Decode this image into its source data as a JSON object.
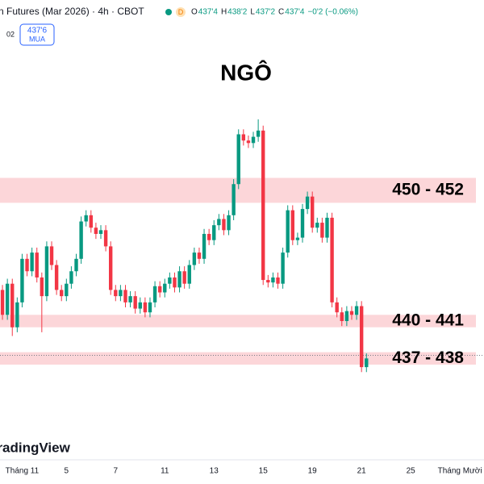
{
  "header": {
    "symbol": "n Futures (Mar 2026) · 4h · CBOT",
    "badge": "D",
    "ohlc": [
      {
        "label": "O",
        "value": "437'4"
      },
      {
        "label": "H",
        "value": "438'2"
      },
      {
        "label": "L",
        "value": "437'2"
      },
      {
        "label": "C",
        "value": "437'4"
      }
    ],
    "change": "−0'2 (−0.06%)",
    "row2": "02",
    "buy": {
      "price": "437'6",
      "label": "MUA"
    },
    "watermark": "TradingView"
  },
  "chart_data": {
    "type": "candlestick",
    "title": "NGÔ",
    "up_color": "#089981",
    "down_color": "#f23645",
    "open": [
      443,
      441,
      443.5,
      440,
      442,
      445.5,
      444.5,
      446,
      444,
      442.5,
      446.5,
      445,
      443,
      442.5,
      443.5,
      444.5,
      445.5,
      448.5,
      449,
      448,
      447.5,
      447.8,
      446.5,
      443,
      442.5,
      443,
      442,
      442.5,
      441.5,
      442,
      441.2,
      442,
      443.3,
      442.8,
      443.5,
      444,
      443.2,
      444.5,
      443.5,
      445,
      446,
      445.5,
      447.5,
      447,
      448.2,
      448.7,
      447.8,
      449,
      451.5,
      455.5,
      455,
      454.8,
      455.3,
      455.8,
      443.8,
      443.6,
      444,
      443.5,
      446,
      449.4,
      447,
      447.2,
      449.5,
      450.5,
      448,
      448.4,
      447.2,
      448.8,
      442,
      441.2,
      440.5,
      441.3,
      441,
      441.7,
      436.8
    ],
    "high": [
      443.4,
      443.9,
      443.9,
      442.4,
      445.9,
      445.9,
      446.4,
      446.4,
      444.4,
      446.9,
      446.9,
      445.4,
      443.4,
      443.9,
      444.9,
      445.9,
      448.9,
      449.4,
      449.4,
      448.4,
      448.2,
      448.2,
      446.9,
      443.4,
      443.4,
      443.4,
      442.9,
      442.9,
      442.4,
      442.4,
      442.4,
      443.7,
      443.7,
      443.9,
      444.4,
      444.4,
      444.9,
      444.9,
      445.4,
      446.4,
      446.4,
      447.9,
      447.9,
      448.6,
      449.1,
      449.1,
      449.4,
      451.9,
      455.9,
      455.9,
      455.4,
      455.7,
      456.7,
      456.2,
      444.2,
      444.4,
      444.4,
      446.4,
      449.8,
      449.8,
      447.6,
      449.9,
      450.9,
      450.9,
      448.8,
      448.8,
      449.2,
      449.2,
      442.4,
      441.6,
      441.7,
      441.7,
      442.1,
      442.1,
      437.9
    ],
    "low": [
      440.6,
      440.6,
      439.3,
      439.6,
      441.6,
      444.1,
      444.1,
      443.6,
      439.6,
      442.1,
      444.6,
      442.6,
      442.1,
      442.1,
      443.1,
      444.1,
      445.1,
      448.1,
      447.6,
      447.1,
      447.1,
      446.1,
      442.6,
      442.1,
      442.1,
      441.6,
      441.6,
      441.1,
      441.1,
      440.8,
      440.8,
      441.6,
      442.4,
      442.4,
      443.1,
      442.8,
      442.8,
      443.1,
      443.1,
      444.6,
      445.1,
      445.1,
      446.6,
      446.6,
      447.8,
      447.4,
      447.4,
      448.6,
      451.1,
      454.6,
      454.4,
      454.4,
      454.9,
      443.4,
      443.2,
      443.2,
      443.1,
      443.1,
      445.6,
      446.6,
      446.6,
      446.8,
      449.1,
      447.6,
      447.6,
      446.8,
      446.8,
      441.6,
      440.8,
      440.1,
      440.1,
      440.6,
      440.6,
      436.4,
      436.4
    ],
    "close": [
      441,
      443.5,
      440,
      442,
      445.5,
      444.5,
      446,
      444,
      442.5,
      446.5,
      445,
      443,
      442.5,
      443.5,
      444.5,
      445.5,
      448.5,
      449,
      448,
      447.5,
      447.8,
      446.5,
      443,
      442.5,
      443,
      442,
      442.5,
      441.5,
      442,
      441.2,
      442,
      443.3,
      442.8,
      443.5,
      444,
      443.2,
      444.5,
      443.5,
      445,
      446,
      445.5,
      447.5,
      447,
      448.2,
      448.7,
      447.8,
      449,
      451.5,
      455.5,
      455,
      454.8,
      455.3,
      455.8,
      443.8,
      443.6,
      444,
      443.5,
      446,
      449.4,
      447,
      447.2,
      449.5,
      450.5,
      448,
      448.4,
      447.2,
      448.8,
      442,
      441.2,
      440.5,
      441.3,
      441,
      441.7,
      436.8,
      437.5
    ],
    "xlim": [
      -0.5,
      97.9
    ],
    "ylim": [
      431.3,
      462.4
    ],
    "xticks": [
      {
        "value": 4,
        "label": "Tháng 11"
      },
      {
        "value": 13,
        "label": "5"
      },
      {
        "value": 23,
        "label": "7"
      },
      {
        "value": 33,
        "label": "11"
      },
      {
        "value": 43,
        "label": "13"
      },
      {
        "value": 53,
        "label": "15"
      },
      {
        "value": 63,
        "label": "19"
      },
      {
        "value": 73,
        "label": "21"
      },
      {
        "value": 83,
        "label": "25"
      },
      {
        "value": 93,
        "label": "Tháng Mười"
      }
    ],
    "zones": [
      {
        "label": "450 - 452",
        "low": 450,
        "high": 452,
        "color": "#fcd6d9"
      },
      {
        "label": "440 - 441",
        "low": 440,
        "high": 441,
        "color": "#fcd6d9"
      },
      {
        "label": "437 - 438",
        "low": 437,
        "high": 438,
        "color": "#fcd6d9"
      }
    ],
    "last_price": 437.75
  }
}
